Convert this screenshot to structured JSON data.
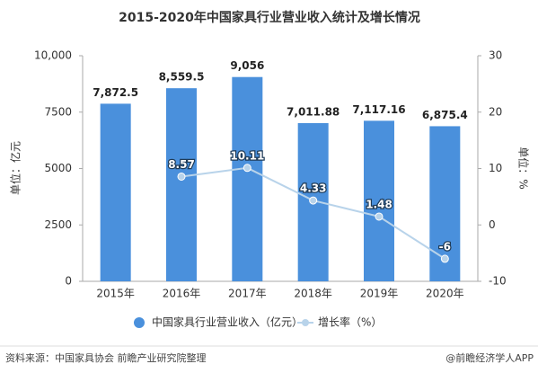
{
  "chart_data": {
    "type": "bar",
    "title": "2015-2020年中国家具行业营业收入统计及增长情况",
    "y_label": "单位：亿元",
    "y2_label": "单位：%",
    "categories": [
      "2015年",
      "2016年",
      "2017年",
      "2018年",
      "2019年",
      "2020年"
    ],
    "series": [
      {
        "name": "中国家具行业营业收入（亿元）",
        "type": "bar",
        "color": "#4a90dc",
        "values": [
          7872.5,
          8559.5,
          9056,
          7011.88,
          7117.16,
          6875.4
        ],
        "value_labels": [
          "7,872.5",
          "8,559.5",
          "9,056",
          "7,011.88",
          "7,117.16",
          "6,875.4"
        ]
      },
      {
        "name": "增长率（%）",
        "type": "line",
        "axis": "y2",
        "color": "#b8d3ea",
        "values": [
          null,
          8.57,
          10.11,
          4.33,
          1.48,
          -6
        ]
      }
    ],
    "ylim": [
      0,
      10000
    ],
    "yticks": [
      0,
      2500,
      5000,
      7500,
      {
        "value": 10000,
        "label": "10,000"
      }
    ],
    "y2lim": [
      -10,
      30
    ],
    "y2ticks": [
      -10,
      0,
      10,
      20,
      30
    ],
    "legend": "bottom",
    "source": "资料来源：中国家具协会 前瞻产业研究院整理",
    "credit": "@前瞻经济学人APP"
  }
}
